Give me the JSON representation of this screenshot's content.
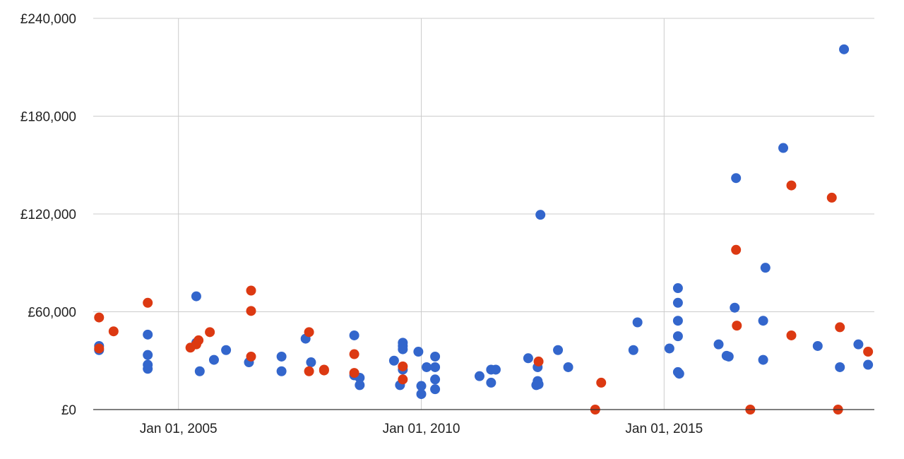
{
  "chart_data": {
    "type": "scatter",
    "grid": true,
    "legend": "none",
    "colors": {
      "blue": "#3366cc",
      "red": "#dc3912",
      "grid": "#cccccc",
      "baseline": "#333333"
    },
    "x_axis": {
      "type": "date",
      "range": [
        "2003-04-01",
        "2019-05-01"
      ],
      "ticks": [
        {
          "value": "2005-01-01",
          "label": "Jan 01, 2005"
        },
        {
          "value": "2010-01-01",
          "label": "Jan 01, 2010"
        },
        {
          "value": "2015-01-01",
          "label": "Jan 01, 2015"
        }
      ]
    },
    "y_axis": {
      "range": [
        0,
        240000
      ],
      "ticks": [
        {
          "value": 0,
          "label": "£0"
        },
        {
          "value": 60000,
          "label": "£60,000"
        },
        {
          "value": 120000,
          "label": "£120,000"
        },
        {
          "value": 180000,
          "label": "£180,000"
        },
        {
          "value": 240000,
          "label": "£240,000"
        }
      ]
    },
    "series": [
      {
        "color": "#3366cc",
        "points": [
          [
            "2003-05-15",
            36500
          ],
          [
            "2003-05-15",
            39000
          ],
          [
            "2004-05-15",
            46000
          ],
          [
            "2004-05-15",
            33500
          ],
          [
            "2004-05-15",
            27500
          ],
          [
            "2004-05-15",
            25000
          ],
          [
            "2005-05-15",
            69500
          ],
          [
            "2005-05-15",
            41000
          ],
          [
            "2005-06-10",
            23500
          ],
          [
            "2005-09-25",
            30500
          ],
          [
            "2005-12-25",
            36500
          ],
          [
            "2006-06-15",
            29000
          ],
          [
            "2007-02-15",
            32500
          ],
          [
            "2007-02-15",
            23500
          ],
          [
            "2007-08-15",
            43500
          ],
          [
            "2007-09-25",
            29000
          ],
          [
            "2008-08-15",
            45500
          ],
          [
            "2008-08-15",
            21000
          ],
          [
            "2008-09-25",
            19500
          ],
          [
            "2008-09-25",
            15000
          ],
          [
            "2009-06-10",
            30000
          ],
          [
            "2009-08-15",
            41000
          ],
          [
            "2009-08-15",
            39000
          ],
          [
            "2009-08-15",
            37000
          ],
          [
            "2009-08-15",
            24500
          ],
          [
            "2009-07-25",
            15000
          ],
          [
            "2009-12-10",
            35500
          ],
          [
            "2010-01-01",
            14500
          ],
          [
            "2010-01-01",
            9500
          ],
          [
            "2010-02-10",
            26000
          ],
          [
            "2010-04-15",
            32500
          ],
          [
            "2010-04-15",
            26000
          ],
          [
            "2010-04-15",
            18500
          ],
          [
            "2010-04-15",
            12500
          ],
          [
            "2011-03-15",
            20500
          ],
          [
            "2011-06-10",
            24500
          ],
          [
            "2011-06-10",
            16500
          ],
          [
            "2011-07-15",
            24500
          ],
          [
            "2012-03-15",
            31500
          ],
          [
            "2012-05-25",
            26000
          ],
          [
            "2012-05-25",
            17500
          ],
          [
            "2012-05-15",
            15000
          ],
          [
            "2012-06-01",
            15500
          ],
          [
            "2012-06-15",
            119500
          ],
          [
            "2012-10-25",
            36500
          ],
          [
            "2013-01-10",
            26000
          ],
          [
            "2014-05-15",
            36500
          ],
          [
            "2014-06-15",
            53500
          ],
          [
            "2015-02-10",
            37500
          ],
          [
            "2015-04-15",
            74500
          ],
          [
            "2015-04-15",
            65500
          ],
          [
            "2015-04-15",
            54500
          ],
          [
            "2015-04-15",
            45000
          ],
          [
            "2015-04-15",
            23000
          ],
          [
            "2015-04-25",
            22000
          ],
          [
            "2016-02-15",
            40000
          ],
          [
            "2016-04-15",
            33000
          ],
          [
            "2016-05-01",
            32500
          ],
          [
            "2016-06-15",
            62500
          ],
          [
            "2016-06-25",
            142000
          ],
          [
            "2017-01-15",
            54500
          ],
          [
            "2017-01-15",
            30500
          ],
          [
            "2017-02-01",
            87000
          ],
          [
            "2017-06-15",
            160500
          ],
          [
            "2018-03-01",
            39000
          ],
          [
            "2018-08-15",
            26000
          ],
          [
            "2018-09-15",
            221000
          ],
          [
            "2019-01-01",
            40000
          ],
          [
            "2019-03-15",
            27500
          ]
        ]
      },
      {
        "color": "#dc3912",
        "points": [
          [
            "2003-05-15",
            56500
          ],
          [
            "2003-05-15",
            37500
          ],
          [
            "2003-09-01",
            48000
          ],
          [
            "2004-05-15",
            65500
          ],
          [
            "2005-04-01",
            38000
          ],
          [
            "2005-05-15",
            40000
          ],
          [
            "2005-06-01",
            42500
          ],
          [
            "2005-08-25",
            47500
          ],
          [
            "2006-07-01",
            73000
          ],
          [
            "2006-07-01",
            60500
          ],
          [
            "2006-07-01",
            32500
          ],
          [
            "2007-09-10",
            47500
          ],
          [
            "2007-09-10",
            23500
          ],
          [
            "2008-01-01",
            24500
          ],
          [
            "2008-01-01",
            24000
          ],
          [
            "2008-08-15",
            34000
          ],
          [
            "2008-08-15",
            22500
          ],
          [
            "2009-08-15",
            26500
          ],
          [
            "2009-08-15",
            18500
          ],
          [
            "2012-06-01",
            29500
          ],
          [
            "2013-08-01",
            0
          ],
          [
            "2013-09-15",
            16500
          ],
          [
            "2016-06-25",
            98000
          ],
          [
            "2016-07-01",
            51500
          ],
          [
            "2016-10-10",
            0
          ],
          [
            "2017-08-15",
            137500
          ],
          [
            "2017-08-15",
            45500
          ],
          [
            "2018-06-15",
            130000
          ],
          [
            "2018-08-15",
            50500
          ],
          [
            "2018-08-01",
            0
          ],
          [
            "2019-03-15",
            35500
          ]
        ]
      }
    ]
  }
}
